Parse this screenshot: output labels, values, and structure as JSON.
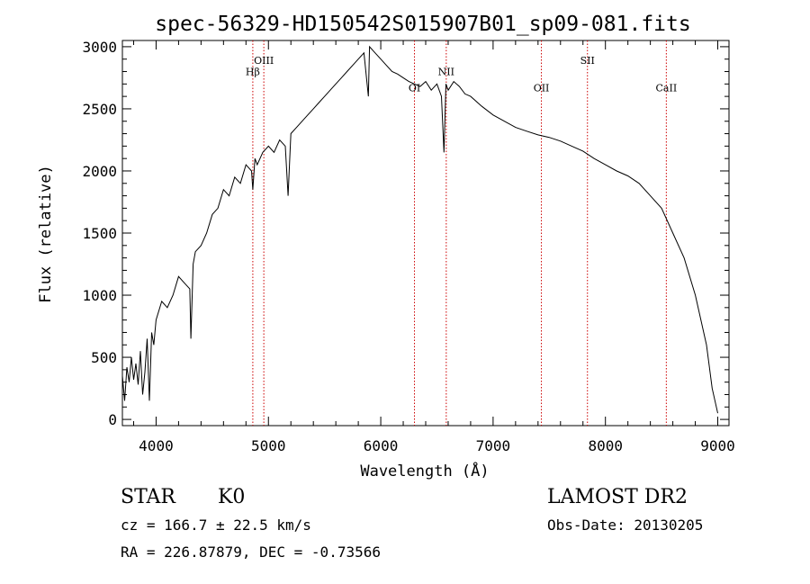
{
  "chart_data": {
    "type": "line",
    "title": "spec-56329-HD150542S015907B01_sp09-081.fits",
    "xlabel": "Wavelength (Å)",
    "ylabel": "Flux (relative)",
    "xlim": [
      3700,
      9100
    ],
    "ylim": [
      -50,
      3050
    ],
    "x_ticks": [
      4000,
      5000,
      6000,
      7000,
      8000,
      9000
    ],
    "y_ticks": [
      0,
      500,
      1000,
      1500,
      2000,
      2500,
      3000
    ],
    "grid": false,
    "series": [
      {
        "x": [
          3700,
          3720,
          3740,
          3760,
          3780,
          3800,
          3820,
          3840,
          3860,
          3880,
          3900,
          3920,
          3940,
          3960,
          3980,
          4000,
          4050,
          4100,
          4150,
          4200,
          4250,
          4300,
          4310,
          4330,
          4350,
          4400,
          4450,
          4500,
          4550,
          4600,
          4650,
          4700,
          4750,
          4800,
          4850,
          4861,
          4880,
          4900,
          4950,
          5000,
          5050,
          5100,
          5150,
          5175,
          5200,
          5250,
          5300,
          5350,
          5400,
          5450,
          5500,
          5550,
          5600,
          5650,
          5700,
          5750,
          5800,
          5850,
          5890,
          5900,
          5950,
          6000,
          6050,
          6100,
          6150,
          6200,
          6250,
          6300,
          6350,
          6400,
          6450,
          6500,
          6540,
          6563,
          6580,
          6600,
          6650,
          6700,
          6750,
          6800,
          6900,
          7000,
          7100,
          7200,
          7300,
          7400,
          7500,
          7600,
          7700,
          7800,
          7900,
          8000,
          8100,
          8200,
          8300,
          8400,
          8500,
          8600,
          8700,
          8800,
          8900,
          8950,
          9000
        ],
        "y": [
          350,
          150,
          420,
          300,
          500,
          320,
          450,
          280,
          550,
          200,
          380,
          650,
          150,
          700,
          600,
          800,
          950,
          900,
          1000,
          1150,
          1100,
          1050,
          650,
          1250,
          1350,
          1400,
          1500,
          1650,
          1700,
          1850,
          1800,
          1950,
          1900,
          2050,
          2000,
          1850,
          2100,
          2050,
          2150,
          2200,
          2150,
          2250,
          2200,
          1800,
          2300,
          2350,
          2400,
          2450,
          2500,
          2550,
          2600,
          2650,
          2700,
          2750,
          2800,
          2850,
          2900,
          2950,
          2600,
          3000,
          2950,
          2900,
          2850,
          2800,
          2780,
          2750,
          2720,
          2700,
          2680,
          2720,
          2650,
          2700,
          2600,
          2150,
          2700,
          2650,
          2720,
          2680,
          2620,
          2600,
          2520,
          2450,
          2400,
          2350,
          2320,
          2290,
          2270,
          2240,
          2200,
          2160,
          2100,
          2050,
          2000,
          1960,
          1900,
          1800,
          1700,
          1500,
          1300,
          1000,
          600,
          250,
          50
        ]
      }
    ],
    "lines": [
      {
        "label": "Hβ",
        "x": 4861,
        "label_y": 2770
      },
      {
        "label": "OIII",
        "x": 4959,
        "label_y": 2860
      },
      {
        "label": "OI",
        "x": 6300,
        "label_y": 2640
      },
      {
        "label": "NII",
        "x": 6583,
        "label_y": 2770
      },
      {
        "label": "OII",
        "x": 7430,
        "label_y": 2640
      },
      {
        "label": "SII",
        "x": 7840,
        "label_y": 2860
      },
      {
        "label": "CaII",
        "x": 8542,
        "label_y": 2640
      }
    ]
  },
  "info": {
    "class": "STAR",
    "subclass": "K0",
    "survey": "LAMOST DR2",
    "cz": "cz = 166.7 ± 22.5 km/s",
    "obs_date": "Obs-Date: 20130205",
    "coords": "RA = 226.87879, DEC =  -0.73566"
  },
  "colors": {
    "line_markers": "#cc0000",
    "spectrum": "#000000",
    "frame": "#000000"
  }
}
